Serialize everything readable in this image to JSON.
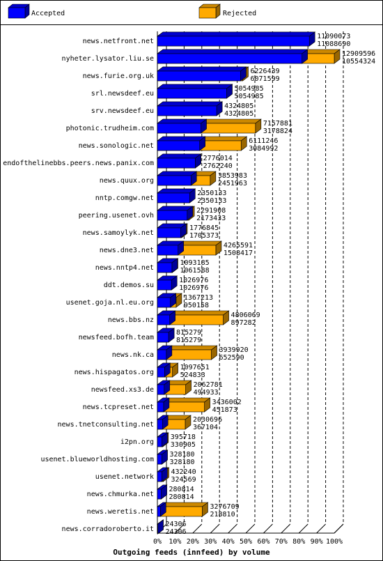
{
  "chart_data": {
    "type": "bar",
    "orientation": "horizontal",
    "title": "Outgoing feeds (innfeed) by volume",
    "categories": [
      "news.netfront.net",
      "nyheter.lysator.liu.se",
      "news.furie.org.uk",
      "srl.newsdeef.eu",
      "srv.newsdeef.eu",
      "photonic.trudheim.com",
      "news.sonologic.net",
      "endofthelinebbs.peers.news.panix.com",
      "news.quux.org",
      "nntp.comgw.net",
      "peering.usenet.ovh",
      "news.samoylyk.net",
      "news.dne3.net",
      "news.nntp4.net",
      "ddt.demos.su",
      "usenet.goja.nl.eu.org",
      "news.bbs.nz",
      "newsfeed.bofh.team",
      "news.nk.ca",
      "news.hispagatos.org",
      "newsfeed.xs3.de",
      "news.tcpreset.net",
      "news.tnetconsulting.net",
      "i2pn.org",
      "usenet.blueworldhosting.com",
      "usenet.network",
      "news.chmurka.net",
      "news.weretis.net",
      "news.corradoroberto.it"
    ],
    "series": [
      {
        "name": "Rejected",
        "color": "#ffaa00",
        "values": [
          11090073,
          12909596,
          6226439,
          5054985,
          4324805,
          7157881,
          6111246,
          2776014,
          3853983,
          2350133,
          2291908,
          1776845,
          4265591,
          1093185,
          1026976,
          1367213,
          4806069,
          815279,
          3939920,
          1097651,
          2062781,
          3436002,
          2030696,
          395718,
          328180,
          432240,
          280814,
          3276709,
          24306
        ]
      },
      {
        "name": "Accepted",
        "color": "#0000ff",
        "values": [
          11088690,
          10554324,
          6071599,
          5054985,
          4324805,
          3178824,
          3084992,
          2762240,
          2451963,
          2350133,
          2173433,
          1705373,
          1508417,
          1061588,
          1026976,
          950158,
          897282,
          815279,
          652590,
          524833,
          494933,
          451873,
          367104,
          330905,
          328180,
          324569,
          280814,
          218810,
          24306
        ]
      }
    ],
    "xlim": [
      0,
      100
    ],
    "xticks": [
      {
        "value": 0,
        "label": "0%"
      },
      {
        "value": 10,
        "label": "10%"
      },
      {
        "value": 20,
        "label": "20%"
      },
      {
        "value": 30,
        "label": "30%"
      },
      {
        "value": 40,
        "label": "40%"
      },
      {
        "value": 50,
        "label": "50%"
      },
      {
        "value": 60,
        "label": "60%"
      },
      {
        "value": 70,
        "label": "70%"
      },
      {
        "value": 80,
        "label": "80%"
      },
      {
        "value": 90,
        "label": "90%"
      },
      {
        "value": 100,
        "label": "100%"
      }
    ],
    "grid": true
  }
}
